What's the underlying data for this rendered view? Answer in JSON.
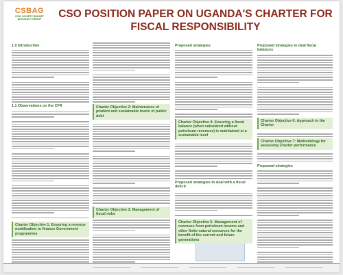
{
  "header": {
    "logo": "CSBAG",
    "logo_caption": "CIVIL SOCIETY BUDGET ADVOCACY GROUP",
    "title": "CSO POSITION PAPER ON UGANDA'S CHARTER FOR FISCAL RESPONSIBILITY"
  },
  "headings": [
    "1.0 Introduction",
    "1.1 Observations on the CFR",
    "Charter Objective 1: Ensuring a revenue mobilization to finance Government programmes",
    "Charter Objective 2: Maintenance of prudent and sustainable levels of public debt",
    "Charter Objective 3: Management of fiscal risks",
    "Proposed strategies",
    "Charter Objective 4: Ensuring a fiscal balance (when calculated without petroleum revenues) is maintained at a sustainable level",
    "Proposed strategies to deal with a fiscal deficit",
    "Charter Objective 5: Management of revenues from petroleum income and other finite natural resources for the benefit of the current and future generations",
    "Proposed strategies to deal fiscal balances",
    "Charter Objective 6: Approach to the Charter",
    "Charter Objective 7: Methodology for assessing Charter performance",
    "Proposed strategies"
  ]
}
